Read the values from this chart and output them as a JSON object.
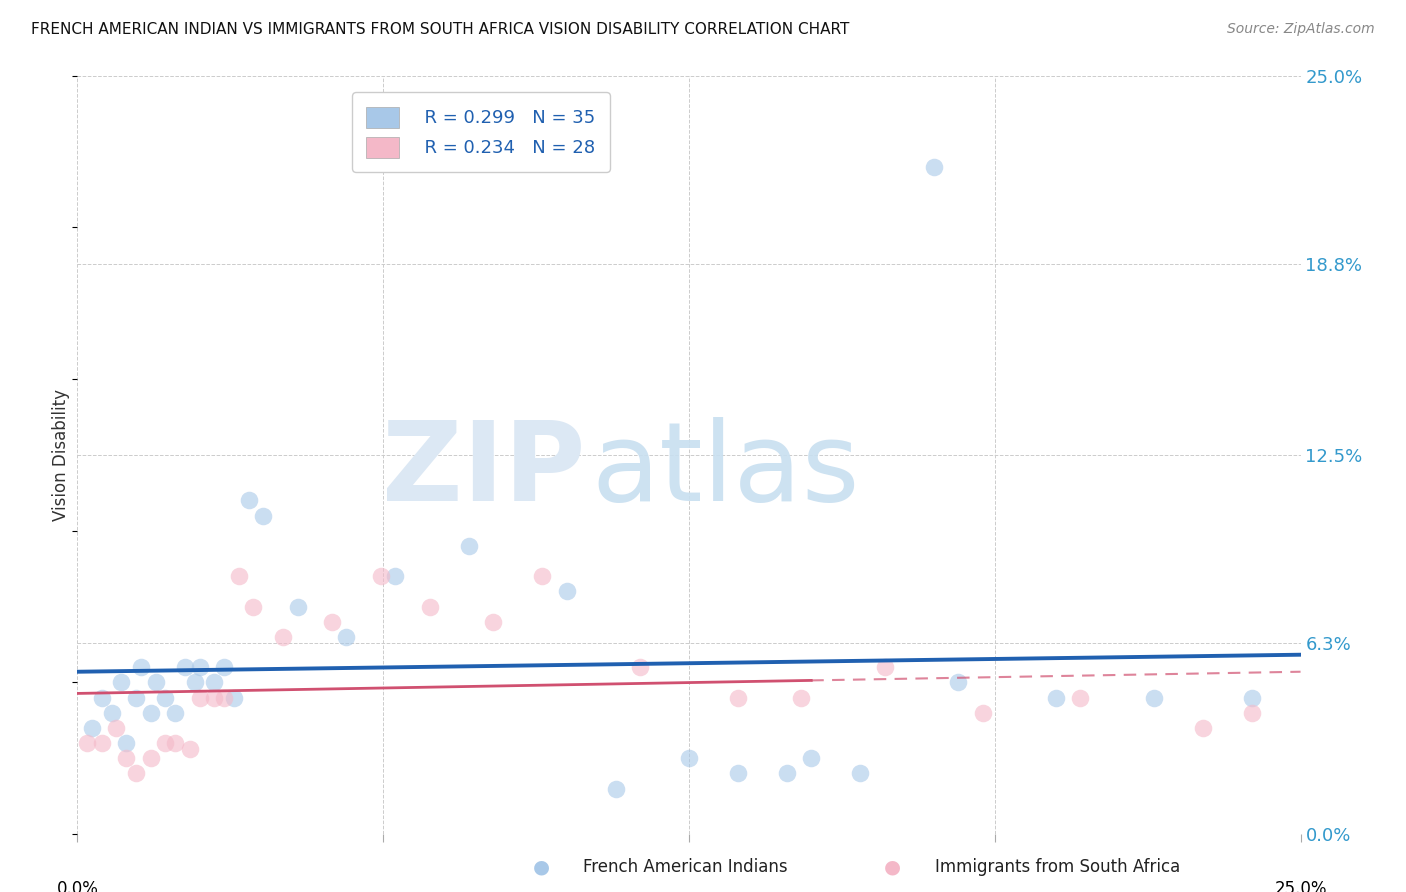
{
  "title": "FRENCH AMERICAN INDIAN VS IMMIGRANTS FROM SOUTH AFRICA VISION DISABILITY CORRELATION CHART",
  "source": "Source: ZipAtlas.com",
  "ylabel": "Vision Disability",
  "ytick_values": [
    0.0,
    6.3,
    12.5,
    18.8,
    25.0
  ],
  "xlim": [
    0.0,
    25.0
  ],
  "ylim": [
    0.0,
    25.0
  ],
  "legend1_R": "R = 0.299",
  "legend1_N": "N = 35",
  "legend2_R": "R = 0.234",
  "legend2_N": "N = 28",
  "color_blue": "#a8c8e8",
  "color_pink": "#f4b8c8",
  "color_blue_line": "#2060b0",
  "color_pink_line": "#d05070",
  "blue_scatter_x": [
    0.3,
    0.5,
    0.7,
    0.9,
    1.0,
    1.2,
    1.3,
    1.5,
    1.6,
    1.8,
    2.0,
    2.2,
    2.4,
    2.5,
    2.8,
    3.0,
    3.2,
    3.5,
    3.8,
    4.5,
    5.5,
    6.5,
    8.0,
    10.0,
    11.0,
    12.5,
    13.5,
    14.5,
    16.0,
    18.0,
    20.0,
    22.0,
    24.0,
    15.0,
    17.5
  ],
  "blue_scatter_y": [
    3.5,
    4.5,
    4.0,
    5.0,
    3.0,
    4.5,
    5.5,
    4.0,
    5.0,
    4.5,
    4.0,
    5.5,
    5.0,
    5.5,
    5.0,
    5.5,
    4.5,
    11.0,
    10.5,
    7.5,
    6.5,
    8.5,
    9.5,
    8.0,
    1.5,
    2.5,
    2.0,
    2.0,
    2.0,
    5.0,
    4.5,
    4.5,
    4.5,
    2.5,
    22.0
  ],
  "pink_scatter_x": [
    0.2,
    0.5,
    0.8,
    1.0,
    1.2,
    1.5,
    1.8,
    2.0,
    2.3,
    2.5,
    2.8,
    3.0,
    3.3,
    3.6,
    4.2,
    5.2,
    6.2,
    7.2,
    8.5,
    9.5,
    11.5,
    13.5,
    14.8,
    16.5,
    18.5,
    20.5,
    23.0,
    24.0
  ],
  "pink_scatter_y": [
    3.0,
    3.0,
    3.5,
    2.5,
    2.0,
    2.5,
    3.0,
    3.0,
    2.8,
    4.5,
    4.5,
    4.5,
    8.5,
    7.5,
    6.5,
    7.0,
    8.5,
    7.5,
    7.0,
    8.5,
    5.5,
    4.5,
    4.5,
    5.5,
    4.0,
    4.5,
    3.5,
    4.0
  ],
  "pink_solid_end_x": 15.0
}
